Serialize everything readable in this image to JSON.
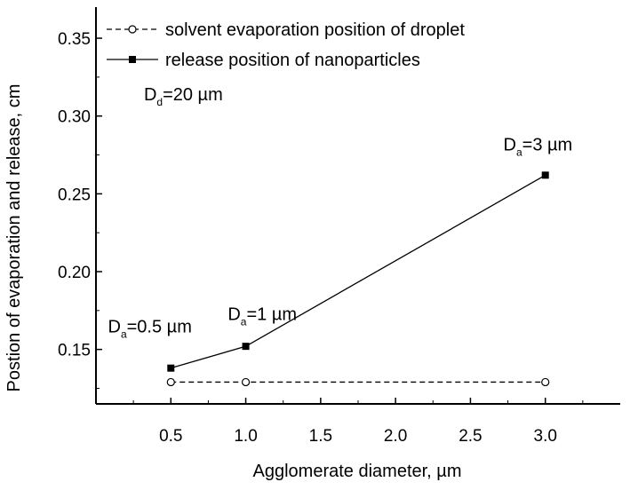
{
  "chart_data": {
    "type": "line",
    "xlabel": "Agglomerate diameter, µm",
    "ylabel": "Postion of evaporation and release, cm",
    "xlim": [
      0.0,
      3.5
    ],
    "ylim": [
      0.115,
      0.37
    ],
    "x_ticks": [
      {
        "value": 0.5,
        "label": "0.5"
      },
      {
        "value": 1.0,
        "label": "1.0"
      },
      {
        "value": 1.5,
        "label": "1.5"
      },
      {
        "value": 2.0,
        "label": "2.0"
      },
      {
        "value": 2.5,
        "label": "2.5"
      },
      {
        "value": 3.0,
        "label": "3.0"
      }
    ],
    "y_ticks": [
      {
        "value": 0.15,
        "label": "0.15"
      },
      {
        "value": 0.2,
        "label": "0.20"
      },
      {
        "value": 0.25,
        "label": "0.25"
      },
      {
        "value": 0.3,
        "label": "0.30"
      },
      {
        "value": 0.35,
        "label": "0.35"
      }
    ],
    "grid": false,
    "legend_position": "top-left",
    "series": [
      {
        "name": "solvent evaporation position of droplet",
        "line_style": "dashed",
        "marker": "open-circle",
        "color": "#000000",
        "x": [
          0.5,
          1.0,
          3.0
        ],
        "y": [
          0.129,
          0.129,
          0.129
        ]
      },
      {
        "name": "release position of nanoparticles",
        "line_style": "solid",
        "marker": "filled-square",
        "color": "#000000",
        "x": [
          0.5,
          1.0,
          3.0
        ],
        "y": [
          0.138,
          0.152,
          0.262
        ]
      }
    ],
    "annotations": [
      {
        "base": "D",
        "sub": "d",
        "text": "=20 µm",
        "x": 0.32,
        "y": 0.31
      },
      {
        "base": "D",
        "sub": "a",
        "text": "=0.5 µm",
        "x": 0.08,
        "y": 0.161
      },
      {
        "base": "D",
        "sub": "a",
        "text": "=1 µm",
        "x": 0.88,
        "y": 0.169
      },
      {
        "base": "D",
        "sub": "a",
        "text": "=3 µm",
        "x": 2.72,
        "y": 0.278
      }
    ]
  }
}
